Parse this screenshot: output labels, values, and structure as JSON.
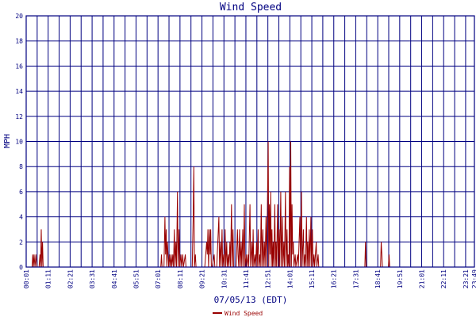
{
  "chart_data": {
    "type": "line",
    "title": "Wind Speed",
    "xlabel": "07/05/13 (EDT)",
    "ylabel": "MPH",
    "ylim": [
      0,
      20
    ],
    "xlim_minutes": [
      1,
      1429
    ],
    "yticks": [
      0,
      2,
      4,
      6,
      8,
      10,
      12,
      14,
      16,
      18,
      20
    ],
    "xtick_labels": [
      "00:01",
      "01:11",
      "02:21",
      "03:31",
      "04:41",
      "05:51",
      "07:01",
      "08:11",
      "09:21",
      "10:31",
      "11:41",
      "12:51",
      "14:01",
      "15:11",
      "16:21",
      "17:31",
      "18:41",
      "19:51",
      "21:01",
      "22:11",
      "23:21",
      "23:49"
    ],
    "grid": true,
    "legend_position": "bottom",
    "series": [
      {
        "name": "Wind Speed",
        "color": "#990000",
        "points": [
          [
            1,
            0
          ],
          [
            20,
            0
          ],
          [
            22,
            1
          ],
          [
            24,
            0
          ],
          [
            26,
            1
          ],
          [
            29,
            0
          ],
          [
            32,
            1
          ],
          [
            35,
            0
          ],
          [
            42,
            0
          ],
          [
            45,
            1
          ],
          [
            47,
            0
          ],
          [
            49,
            3
          ],
          [
            51,
            0
          ],
          [
            53,
            2
          ],
          [
            55,
            0
          ],
          [
            60,
            0
          ],
          [
            400,
            0
          ],
          [
            430,
            0
          ],
          [
            432,
            1
          ],
          [
            434,
            0
          ],
          [
            440,
            0
          ],
          [
            443,
            4
          ],
          [
            445,
            1
          ],
          [
            447,
            3
          ],
          [
            449,
            0
          ],
          [
            451,
            2
          ],
          [
            453,
            1
          ],
          [
            455,
            0
          ],
          [
            458,
            1
          ],
          [
            460,
            0
          ],
          [
            463,
            1
          ],
          [
            465,
            0
          ],
          [
            468,
            1
          ],
          [
            470,
            0
          ],
          [
            473,
            3
          ],
          [
            475,
            0
          ],
          [
            478,
            2
          ],
          [
            480,
            0
          ],
          [
            483,
            6
          ],
          [
            485,
            0
          ],
          [
            488,
            3
          ],
          [
            490,
            0
          ],
          [
            494,
            1
          ],
          [
            496,
            0
          ],
          [
            500,
            1
          ],
          [
            502,
            0
          ],
          [
            508,
            1
          ],
          [
            510,
            0
          ],
          [
            515,
            0
          ],
          [
            530,
            0
          ],
          [
            533,
            4
          ],
          [
            535,
            8
          ],
          [
            537,
            0
          ],
          [
            540,
            1
          ],
          [
            542,
            0
          ],
          [
            548,
            0
          ],
          [
            560,
            0
          ],
          [
            570,
            0
          ],
          [
            576,
            2
          ],
          [
            578,
            1
          ],
          [
            580,
            3
          ],
          [
            582,
            0
          ],
          [
            585,
            3
          ],
          [
            587,
            1
          ],
          [
            589,
            3
          ],
          [
            591,
            0
          ],
          [
            594,
            0
          ],
          [
            600,
            1
          ],
          [
            602,
            0
          ],
          [
            608,
            0
          ],
          [
            615,
            4
          ],
          [
            617,
            0
          ],
          [
            620,
            2
          ],
          [
            622,
            0
          ],
          [
            625,
            3
          ],
          [
            627,
            0
          ],
          [
            630,
            1
          ],
          [
            632,
            0
          ],
          [
            635,
            3
          ],
          [
            637,
            0
          ],
          [
            640,
            2
          ],
          [
            642,
            0
          ],
          [
            645,
            1
          ],
          [
            647,
            0
          ],
          [
            650,
            2
          ],
          [
            652,
            0
          ],
          [
            655,
            5
          ],
          [
            657,
            0
          ],
          [
            660,
            3
          ],
          [
            662,
            0
          ],
          [
            670,
            0
          ],
          [
            674,
            3
          ],
          [
            676,
            1
          ],
          [
            678,
            0
          ],
          [
            681,
            3
          ],
          [
            683,
            0
          ],
          [
            686,
            2
          ],
          [
            688,
            0
          ],
          [
            691,
            3
          ],
          [
            693,
            0
          ],
          [
            696,
            5
          ],
          [
            698,
            0
          ],
          [
            702,
            1
          ],
          [
            704,
            0
          ],
          [
            708,
            1
          ],
          [
            710,
            0
          ],
          [
            714,
            5
          ],
          [
            716,
            0
          ],
          [
            720,
            2
          ],
          [
            722,
            0
          ],
          [
            724,
            3
          ],
          [
            726,
            0
          ],
          [
            730,
            1
          ],
          [
            732,
            0
          ],
          [
            735,
            2
          ],
          [
            737,
            0
          ],
          [
            740,
            3
          ],
          [
            742,
            0
          ],
          [
            745,
            1
          ],
          [
            747,
            0
          ],
          [
            750,
            5
          ],
          [
            752,
            0
          ],
          [
            755,
            3
          ],
          [
            757,
            0
          ],
          [
            760,
            2
          ],
          [
            762,
            0
          ],
          [
            765,
            4
          ],
          [
            767,
            0
          ],
          [
            772,
            10
          ],
          [
            774,
            0
          ],
          [
            776,
            5
          ],
          [
            778,
            1
          ],
          [
            780,
            6
          ],
          [
            782,
            0
          ],
          [
            784,
            3
          ],
          [
            786,
            0
          ],
          [
            788,
            2
          ],
          [
            790,
            0
          ],
          [
            793,
            5
          ],
          [
            795,
            0
          ],
          [
            797,
            2
          ],
          [
            799,
            0
          ],
          [
            802,
            5
          ],
          [
            804,
            0
          ],
          [
            807,
            3
          ],
          [
            809,
            0
          ],
          [
            812,
            6
          ],
          [
            814,
            0
          ],
          [
            817,
            4
          ],
          [
            819,
            0
          ],
          [
            822,
            2
          ],
          [
            824,
            0
          ],
          [
            827,
            6
          ],
          [
            829,
            0
          ],
          [
            832,
            3
          ],
          [
            834,
            0
          ],
          [
            836,
            1
          ],
          [
            838,
            0
          ],
          [
            840,
            8
          ],
          [
            842,
            0
          ],
          [
            844,
            10
          ],
          [
            846,
            0
          ],
          [
            848,
            5
          ],
          [
            850,
            1
          ],
          [
            852,
            2
          ],
          [
            854,
            0
          ],
          [
            858,
            1
          ],
          [
            860,
            0
          ],
          [
            866,
            1
          ],
          [
            868,
            0
          ],
          [
            873,
            4
          ],
          [
            875,
            0
          ],
          [
            878,
            6
          ],
          [
            880,
            0
          ],
          [
            884,
            3
          ],
          [
            886,
            0
          ],
          [
            889,
            1
          ],
          [
            891,
            0
          ],
          [
            894,
            4
          ],
          [
            896,
            0
          ],
          [
            898,
            2
          ],
          [
            900,
            0
          ],
          [
            903,
            3
          ],
          [
            905,
            0
          ],
          [
            908,
            4
          ],
          [
            910,
            0
          ],
          [
            913,
            3
          ],
          [
            915,
            0
          ],
          [
            918,
            1
          ],
          [
            920,
            0
          ],
          [
            925,
            2
          ],
          [
            927,
            0
          ],
          [
            931,
            1
          ],
          [
            933,
            0
          ],
          [
            936,
            0
          ],
          [
            1080,
            0
          ],
          [
            1082,
            2
          ],
          [
            1084,
            0
          ],
          [
            1100,
            0
          ],
          [
            1130,
            0
          ],
          [
            1132,
            2
          ],
          [
            1134,
            1
          ],
          [
            1136,
            0
          ],
          [
            1141,
            0
          ],
          [
            1155,
            0
          ],
          [
            1157,
            1
          ],
          [
            1159,
            0
          ],
          [
            1429,
            0
          ]
        ]
      }
    ]
  }
}
